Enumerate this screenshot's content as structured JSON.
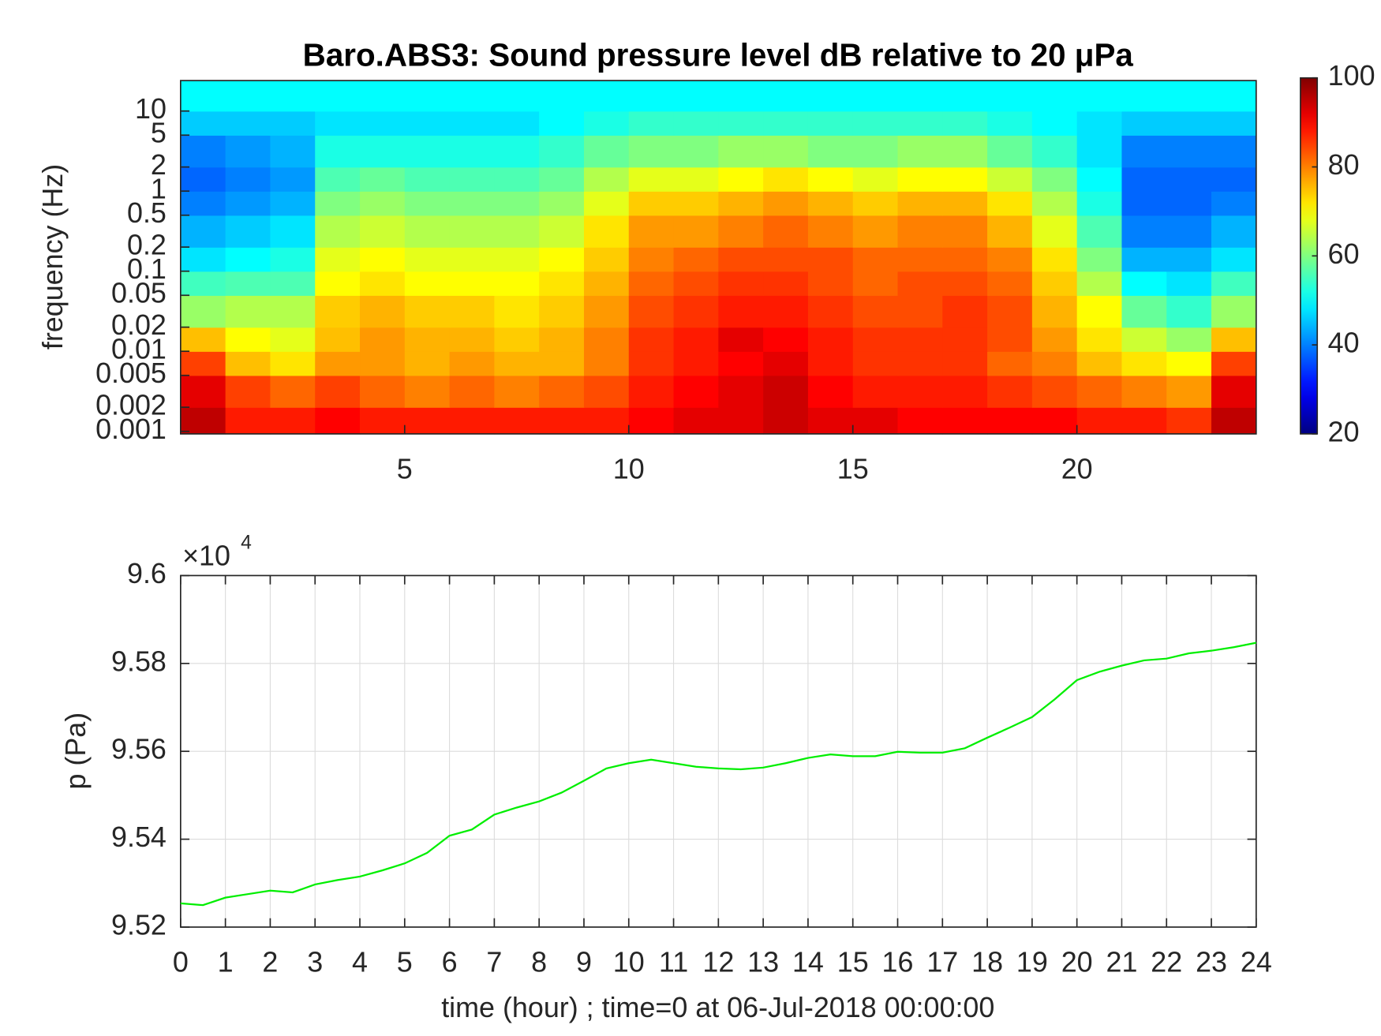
{
  "chart_data": [
    {
      "type": "heatmap",
      "title": "Baro.ABS3: Sound pressure level dB relative to 20 μPa",
      "y_label": "frequency (Hz)",
      "log_y": true,
      "colormap": "jet",
      "clim": [
        20,
        100
      ],
      "colorbar_ticks": [
        20,
        40,
        60,
        80,
        100
      ],
      "xlim": [
        0,
        24
      ],
      "xticks": [
        5,
        10,
        15,
        20
      ],
      "ylim": [
        0.00093,
        24
      ],
      "yticks": [
        0.001,
        0.002,
        0.005,
        0.01,
        0.02,
        0.05,
        0.1,
        0.2,
        0.5,
        1,
        2,
        5,
        10
      ],
      "x_bins": [
        0,
        1,
        2,
        3,
        4,
        5,
        6,
        7,
        8,
        9,
        10,
        11,
        12,
        13,
        14,
        15,
        16,
        17,
        18,
        19,
        20,
        21,
        22,
        23,
        24
      ],
      "y_bins": [
        0.00093,
        0.002,
        0.005,
        0.01,
        0.02,
        0.05,
        0.1,
        0.2,
        0.5,
        1,
        2,
        5,
        10,
        24
      ],
      "z": [
        [
          95,
          88,
          88,
          90,
          88,
          88,
          88,
          88,
          88,
          88,
          90,
          92,
          92,
          94,
          92,
          92,
          90,
          90,
          90,
          90,
          88,
          88,
          86,
          95
        ],
        [
          92,
          85,
          82,
          85,
          82,
          80,
          82,
          80,
          82,
          84,
          88,
          90,
          92,
          94,
          90,
          88,
          88,
          88,
          86,
          84,
          82,
          80,
          78,
          92
        ],
        [
          85,
          75,
          72,
          78,
          78,
          76,
          78,
          76,
          76,
          80,
          86,
          88,
          90,
          92,
          88,
          86,
          86,
          86,
          82,
          80,
          75,
          72,
          70,
          85
        ],
        [
          75,
          70,
          68,
          75,
          78,
          76,
          76,
          74,
          76,
          80,
          86,
          88,
          92,
          90,
          88,
          86,
          86,
          86,
          84,
          78,
          72,
          66,
          62,
          75
        ],
        [
          62,
          64,
          64,
          74,
          76,
          74,
          74,
          72,
          74,
          78,
          84,
          86,
          88,
          88,
          86,
          84,
          84,
          86,
          84,
          76,
          70,
          58,
          54,
          62
        ],
        [
          55,
          56,
          56,
          70,
          72,
          70,
          70,
          70,
          72,
          76,
          82,
          84,
          86,
          86,
          84,
          82,
          84,
          84,
          82,
          74,
          64,
          50,
          48,
          55
        ],
        [
          48,
          50,
          52,
          68,
          70,
          68,
          68,
          68,
          70,
          74,
          80,
          82,
          84,
          84,
          84,
          82,
          82,
          82,
          80,
          72,
          60,
          44,
          44,
          48
        ],
        [
          44,
          46,
          48,
          64,
          66,
          64,
          64,
          64,
          66,
          72,
          78,
          78,
          80,
          82,
          80,
          78,
          80,
          80,
          76,
          68,
          56,
          40,
          40,
          44
        ],
        [
          40,
          42,
          44,
          60,
          62,
          60,
          60,
          60,
          62,
          68,
          74,
          74,
          76,
          78,
          76,
          74,
          76,
          76,
          72,
          64,
          52,
          38,
          38,
          40
        ],
        [
          38,
          40,
          42,
          56,
          58,
          56,
          56,
          56,
          58,
          64,
          68,
          68,
          70,
          72,
          70,
          68,
          70,
          70,
          66,
          60,
          50,
          38,
          38,
          38
        ],
        [
          40,
          42,
          44,
          52,
          52,
          52,
          52,
          52,
          54,
          58,
          60,
          60,
          62,
          62,
          60,
          60,
          62,
          62,
          58,
          54,
          48,
          40,
          40,
          40
        ],
        [
          46,
          46,
          46,
          48,
          48,
          48,
          48,
          48,
          50,
          52,
          54,
          54,
          54,
          54,
          54,
          54,
          54,
          54,
          52,
          50,
          48,
          46,
          46,
          46
        ],
        [
          50,
          50,
          50,
          50,
          50,
          50,
          50,
          50,
          50,
          50,
          50,
          50,
          50,
          50,
          50,
          50,
          50,
          50,
          50,
          50,
          50,
          50,
          50,
          50
        ]
      ]
    },
    {
      "type": "line",
      "x_label": "time (hour) ; time=0 at 06-Jul-2018 00:00:00",
      "y_label": "p (Pa)",
      "y_scale_base": "×10",
      "y_scale_exponent": "4",
      "color": "#00ee00",
      "grid": true,
      "xlim": [
        0,
        24
      ],
      "xticks": [
        0,
        1,
        2,
        3,
        4,
        5,
        6,
        7,
        8,
        9,
        10,
        11,
        12,
        13,
        14,
        15,
        16,
        17,
        18,
        19,
        20,
        21,
        22,
        23,
        24
      ],
      "ylim": [
        95200,
        96000
      ],
      "yticks": [
        {
          "value": 95200,
          "label": "9.52"
        },
        {
          "value": 95400,
          "label": "9.54"
        },
        {
          "value": 95600,
          "label": "9.56"
        },
        {
          "value": 95800,
          "label": "9.58"
        },
        {
          "value": 96000,
          "label": "9.6"
        }
      ],
      "x": [
        0,
        0.5,
        1,
        1.5,
        2,
        2.5,
        3,
        3.5,
        4,
        4.5,
        5,
        5.5,
        6,
        6.5,
        7,
        7.5,
        8,
        8.5,
        9,
        9.5,
        10,
        10.5,
        11,
        11.5,
        12,
        12.5,
        13,
        13.5,
        14,
        14.5,
        15,
        15.5,
        16,
        16.5,
        17,
        17.5,
        18,
        18.5,
        19,
        19.5,
        20,
        20.5,
        21,
        21.5,
        22,
        22.5,
        23,
        23.5,
        24
      ],
      "values": [
        95254,
        95250,
        95267,
        95275,
        95283,
        95279,
        95297,
        95307,
        95315,
        95329,
        95345,
        95369,
        95408,
        95422,
        95456,
        95472,
        95486,
        95506,
        95533,
        95561,
        95573,
        95581,
        95573,
        95565,
        95561,
        95559,
        95563,
        95573,
        95585,
        95593,
        95589,
        95589,
        95599,
        95597,
        95597,
        95607,
        95631,
        95654,
        95678,
        95718,
        95762,
        95781,
        95795,
        95807,
        95811,
        95823,
        95829,
        95837,
        95847
      ]
    }
  ]
}
